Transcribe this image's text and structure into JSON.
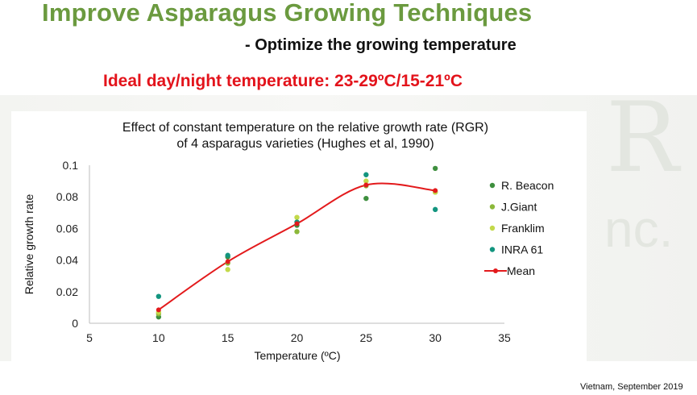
{
  "slide": {
    "title": "Improve Asparagus Growing Techniques",
    "subtitle": "- Optimize the growing temperature",
    "ideal_temp": "Ideal day/night temperature: 23-29ºC/15-21ºC",
    "footer": "Vietnam, September 2019"
  },
  "colors": {
    "title_green": "#6b9a3f",
    "ideal_red": "#e3131b",
    "r_beacon": "#3e8f3e",
    "j_giant": "#8cb83a",
    "franklim": "#c3d94a",
    "inra61": "#13957f",
    "mean": "#e31a1c"
  },
  "chart_data": {
    "type": "scatter",
    "title_line1": "Effect of constant temperature on the relative growth rate (RGR)",
    "title_line2": "of 4 asparagus varieties (Hughes et al, 1990)",
    "xlabel": "Temperature (ºC)",
    "ylabel": "Relative growth rate",
    "xlim": [
      5,
      35
    ],
    "ylim": [
      0,
      0.1
    ],
    "xticks": [
      "5",
      "10",
      "15",
      "20",
      "25",
      "30",
      "35"
    ],
    "yticks": [
      "0",
      "0.02",
      "0.04",
      "0.06",
      "0.08",
      "0.1"
    ],
    "grid": false,
    "legend_position": "right",
    "series": [
      {
        "name": "R. Beacon",
        "color": "#3e8f3e",
        "x": [
          10,
          15,
          20,
          25,
          30
        ],
        "y": [
          0.004,
          0.042,
          0.062,
          0.079,
          0.098
        ]
      },
      {
        "name": "J.Giant",
        "color": "#8cb83a",
        "x": [
          10,
          15,
          20,
          25,
          30
        ],
        "y": [
          0.006,
          0.038,
          0.058,
          0.087,
          0.083
        ]
      },
      {
        "name": "Franklim",
        "color": "#c3d94a",
        "x": [
          10,
          15,
          20,
          25,
          30
        ],
        "y": [
          0.007,
          0.034,
          0.067,
          0.09,
          0.083
        ]
      },
      {
        "name": "INRA 61",
        "color": "#13957f",
        "x": [
          10,
          15,
          20,
          25,
          30
        ],
        "y": [
          0.017,
          0.043,
          0.064,
          0.094,
          0.072
        ]
      },
      {
        "name": "Mean",
        "color": "#e31a1c",
        "line": true,
        "x": [
          10,
          15,
          20,
          25,
          30
        ],
        "y": [
          0.0085,
          0.039,
          0.063,
          0.0875,
          0.084
        ]
      }
    ]
  }
}
